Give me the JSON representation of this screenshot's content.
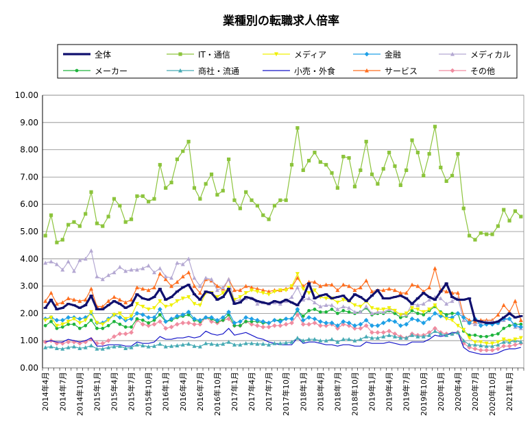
{
  "chart_data": {
    "type": "line",
    "title": "業種別の転職求人倍率",
    "xlabel": "",
    "ylabel": "",
    "ylim": [
      0,
      10
    ],
    "yticks": [
      "0.00",
      "1.00",
      "2.00",
      "3.00",
      "4.00",
      "5.00",
      "6.00",
      "7.00",
      "8.00",
      "9.00",
      "10.00"
    ],
    "grid": true,
    "legend_position": "top",
    "x_tick_labels": [
      "2014年4月",
      "2014年7月",
      "2014年10月",
      "2015年1月",
      "2015年4月",
      "2015年7月",
      "2015年10月",
      "2016年1月",
      "2016年4月",
      "2016年7月",
      "2016年10月",
      "2017年1月",
      "2017年4月",
      "2017年7月",
      "2017年10月",
      "2018年1月",
      "2018年4月",
      "2018年7月",
      "2018年10月",
      "2019年1月",
      "2019年4月",
      "2019年7月",
      "2019年10月",
      "2020年1月",
      "2020年4月",
      "2020年7月",
      "2020年10月",
      "2021年1月"
    ],
    "n_points": 84,
    "series": [
      {
        "name": "全体",
        "color": "#10106e",
        "marker": "dash",
        "width": 3.2,
        "values": [
          2.2,
          2.5,
          2.15,
          2.2,
          2.35,
          2.3,
          2.2,
          2.3,
          2.65,
          2.15,
          2.15,
          2.3,
          2.45,
          2.35,
          2.2,
          2.3,
          2.7,
          2.55,
          2.5,
          2.6,
          2.9,
          2.5,
          2.6,
          2.8,
          2.95,
          3.05,
          2.7,
          2.5,
          2.8,
          2.75,
          2.5,
          2.6,
          2.9,
          2.35,
          2.4,
          2.6,
          2.55,
          2.45,
          2.4,
          2.35,
          2.45,
          2.4,
          2.5,
          2.4,
          2.3,
          2.6,
          3.1,
          2.55,
          2.65,
          2.7,
          2.55,
          2.6,
          2.65,
          2.45,
          2.7,
          2.6,
          2.45,
          2.65,
          2.85,
          2.55,
          2.55,
          2.6,
          2.65,
          2.55,
          2.35,
          2.55,
          2.75,
          2.6,
          2.5,
          2.8,
          3.1,
          2.6,
          2.5,
          2.5,
          2.55,
          1.75,
          1.7,
          1.65,
          1.65,
          1.7,
          1.85,
          2.0,
          1.85,
          1.9
        ]
      },
      {
        "name": "IT・通信",
        "color": "#8cc43c",
        "marker": "square",
        "width": 1.2,
        "values": [
          4.85,
          5.6,
          4.6,
          4.7,
          5.25,
          5.35,
          5.2,
          5.65,
          6.45,
          5.3,
          5.2,
          5.55,
          6.2,
          5.95,
          5.35,
          5.45,
          6.3,
          6.3,
          6.1,
          6.2,
          7.45,
          6.6,
          6.8,
          7.65,
          7.95,
          8.3,
          6.6,
          6.2,
          6.75,
          7.1,
          6.35,
          6.5,
          7.65,
          6.15,
          5.85,
          6.45,
          6.15,
          5.95,
          5.6,
          5.45,
          5.95,
          6.15,
          6.15,
          7.45,
          8.8,
          7.25,
          7.6,
          7.9,
          7.55,
          7.45,
          7.15,
          6.6,
          7.75,
          7.7,
          6.65,
          7.25,
          8.3,
          7.1,
          6.75,
          7.3,
          7.9,
          7.4,
          6.7,
          7.25,
          8.35,
          7.9,
          7.05,
          7.85,
          8.85,
          7.35,
          6.85,
          7.05,
          7.85,
          5.85,
          4.85,
          4.7,
          4.95,
          4.9,
          4.9,
          5.2,
          5.8,
          5.4,
          5.75,
          5.55
        ]
      },
      {
        "name": "メディア",
        "color": "#f0f000",
        "marker": "triangle-down",
        "width": 1.2,
        "values": [
          1.75,
          1.85,
          1.55,
          1.6,
          1.7,
          1.8,
          1.65,
          1.75,
          2.05,
          1.65,
          1.6,
          1.75,
          1.95,
          2.0,
          1.8,
          1.9,
          2.35,
          2.25,
          2.15,
          2.2,
          2.45,
          2.25,
          2.3,
          2.45,
          2.55,
          2.6,
          2.35,
          2.3,
          2.75,
          2.75,
          2.6,
          2.75,
          2.95,
          2.5,
          2.6,
          2.75,
          2.85,
          2.8,
          2.75,
          2.7,
          2.8,
          2.85,
          2.85,
          3.0,
          3.45,
          2.9,
          2.75,
          2.85,
          2.6,
          2.55,
          2.55,
          2.4,
          2.5,
          2.45,
          2.3,
          2.25,
          2.45,
          2.2,
          2.15,
          2.15,
          2.2,
          2.1,
          1.95,
          2.0,
          2.2,
          2.15,
          2.05,
          2.15,
          2.3,
          2.0,
          1.8,
          1.75,
          1.55,
          1.4,
          1.1,
          0.95,
          0.95,
          0.9,
          0.9,
          0.95,
          1.05,
          1.0,
          1.05,
          1.1
        ]
      },
      {
        "name": "金融",
        "color": "#1ea0e6",
        "marker": "diamond",
        "width": 1.2,
        "values": [
          1.8,
          1.85,
          1.75,
          1.75,
          1.85,
          1.85,
          1.8,
          1.85,
          2.0,
          1.65,
          1.65,
          1.8,
          1.95,
          1.85,
          1.75,
          1.8,
          2.0,
          1.95,
          1.85,
          1.85,
          2.15,
          1.7,
          1.8,
          1.9,
          1.95,
          2.05,
          1.8,
          1.75,
          1.85,
          1.85,
          1.75,
          1.85,
          2.05,
          1.65,
          1.7,
          1.85,
          1.8,
          1.75,
          1.7,
          1.65,
          1.75,
          1.7,
          1.8,
          1.8,
          2.15,
          1.75,
          1.85,
          1.8,
          1.7,
          1.65,
          1.65,
          1.55,
          1.7,
          1.65,
          1.55,
          1.6,
          1.75,
          1.55,
          1.55,
          1.65,
          1.75,
          1.7,
          1.55,
          1.6,
          1.8,
          1.75,
          1.65,
          1.8,
          2.0,
          1.9,
          1.85,
          1.85,
          2.0,
          1.85,
          1.65,
          1.8,
          1.55,
          1.6,
          1.6,
          1.65,
          1.8,
          1.8,
          1.55,
          1.5
        ]
      },
      {
        "name": "メディカル",
        "color": "#b4a8d2",
        "marker": "triangle",
        "width": 1.2,
        "values": [
          3.85,
          3.9,
          3.8,
          3.6,
          3.9,
          3.55,
          3.95,
          4.0,
          4.3,
          3.35,
          3.25,
          3.4,
          3.5,
          3.7,
          3.55,
          3.6,
          3.6,
          3.65,
          3.75,
          3.5,
          3.65,
          3.35,
          3.3,
          3.85,
          3.8,
          4.0,
          3.3,
          3.0,
          3.3,
          3.25,
          2.85,
          2.95,
          3.25,
          2.45,
          2.5,
          2.55,
          2.55,
          2.35,
          2.4,
          2.35,
          2.4,
          2.35,
          2.45,
          2.6,
          2.95,
          2.5,
          2.55,
          2.4,
          2.25,
          2.3,
          2.3,
          2.15,
          2.25,
          2.2,
          2.05,
          2.05,
          2.25,
          2.0,
          2.05,
          2.05,
          2.15,
          2.1,
          1.95,
          1.95,
          2.35,
          2.3,
          2.35,
          2.5,
          2.6,
          2.55,
          2.35,
          2.45,
          2.55,
          1.75,
          1.65,
          1.6,
          1.65,
          1.7,
          1.7,
          1.65,
          1.75,
          1.8,
          1.5,
          1.45
        ]
      },
      {
        "name": "メーカー",
        "color": "#1eb43c",
        "marker": "circle",
        "width": 1.2,
        "values": [
          1.55,
          1.7,
          1.45,
          1.5,
          1.6,
          1.6,
          1.45,
          1.55,
          1.75,
          1.45,
          1.45,
          1.55,
          1.7,
          1.6,
          1.5,
          1.5,
          1.8,
          1.75,
          1.65,
          1.75,
          1.95,
          1.7,
          1.75,
          1.85,
          1.9,
          1.95,
          1.75,
          1.7,
          1.85,
          1.8,
          1.7,
          1.75,
          1.95,
          1.55,
          1.55,
          1.7,
          1.7,
          1.7,
          1.65,
          1.65,
          1.75,
          1.75,
          1.8,
          1.8,
          2.1,
          1.9,
          2.1,
          2.15,
          2.05,
          2.05,
          2.15,
          2.0,
          2.1,
          2.05,
          2.0,
          2.05,
          2.2,
          1.95,
          2.0,
          2.0,
          2.1,
          2.0,
          1.85,
          1.9,
          2.1,
          2.0,
          1.95,
          2.1,
          2.25,
          2.05,
          1.95,
          2.0,
          2.0,
          1.35,
          1.2,
          1.2,
          1.15,
          1.15,
          1.2,
          1.25,
          1.45,
          1.55,
          1.6,
          1.6
        ]
      },
      {
        "name": "商社・流通",
        "color": "#46aab4",
        "marker": "triangle",
        "width": 1.2,
        "values": [
          0.75,
          0.78,
          0.72,
          0.7,
          0.75,
          0.78,
          0.72,
          0.75,
          0.82,
          0.7,
          0.7,
          0.75,
          0.78,
          0.8,
          0.72,
          0.75,
          0.85,
          0.82,
          0.78,
          0.8,
          0.88,
          0.78,
          0.8,
          0.82,
          0.85,
          0.88,
          0.8,
          0.78,
          0.9,
          0.88,
          0.85,
          0.88,
          0.95,
          0.85,
          0.85,
          0.9,
          0.9,
          0.88,
          0.88,
          0.85,
          0.9,
          0.9,
          0.92,
          0.95,
          1.1,
          1.0,
          1.05,
          1.05,
          1.0,
          1.0,
          1.05,
          0.95,
          1.05,
          1.05,
          1.0,
          1.05,
          1.15,
          1.1,
          1.1,
          1.15,
          1.2,
          1.15,
          1.1,
          1.1,
          1.2,
          1.15,
          1.15,
          1.2,
          1.35,
          1.25,
          1.2,
          1.25,
          1.3,
          1.0,
          0.85,
          0.85,
          0.82,
          0.8,
          0.8,
          0.85,
          0.95,
          0.95,
          1.0,
          0.95
        ]
      },
      {
        "name": "小売・外食",
        "color": "#1414c8",
        "marker": "none",
        "width": 1.2,
        "values": [
          0.95,
          1.0,
          0.95,
          0.95,
          1.05,
          1.0,
          0.95,
          1.0,
          1.1,
          0.8,
          0.8,
          0.85,
          0.85,
          0.85,
          0.8,
          0.8,
          0.95,
          0.9,
          0.9,
          0.95,
          1.15,
          1.05,
          1.05,
          1.1,
          1.1,
          1.15,
          1.1,
          1.15,
          1.35,
          1.25,
          1.2,
          1.25,
          1.45,
          1.2,
          1.25,
          1.3,
          1.2,
          1.1,
          1.05,
          0.95,
          0.9,
          0.85,
          0.85,
          0.85,
          1.1,
          0.9,
          0.95,
          0.95,
          0.9,
          0.85,
          0.85,
          0.8,
          0.85,
          0.85,
          0.8,
          0.8,
          0.95,
          0.9,
          0.9,
          0.9,
          0.95,
          0.9,
          0.85,
          0.85,
          0.95,
          0.95,
          0.95,
          1.05,
          1.2,
          1.15,
          1.2,
          1.3,
          1.3,
          0.75,
          0.6,
          0.55,
          0.5,
          0.5,
          0.5,
          0.55,
          0.65,
          0.7,
          0.7,
          0.75
        ]
      },
      {
        "name": "サービス",
        "color": "#ff6e1e",
        "marker": "triangle",
        "width": 1.2,
        "values": [
          2.45,
          2.75,
          2.35,
          2.4,
          2.55,
          2.5,
          2.45,
          2.5,
          2.9,
          2.25,
          2.25,
          2.45,
          2.6,
          2.5,
          2.4,
          2.5,
          2.95,
          2.9,
          2.85,
          2.95,
          3.45,
          3.25,
          3.0,
          3.15,
          3.35,
          3.5,
          3.0,
          2.75,
          3.25,
          3.2,
          3.0,
          2.9,
          3.25,
          2.85,
          2.85,
          3.0,
          2.95,
          2.9,
          2.85,
          2.8,
          2.85,
          2.85,
          2.9,
          2.95,
          3.3,
          3.0,
          3.15,
          3.15,
          3.0,
          3.05,
          3.05,
          2.85,
          3.05,
          3.0,
          2.85,
          2.95,
          3.2,
          2.8,
          2.85,
          2.85,
          2.9,
          2.85,
          2.75,
          2.75,
          3.05,
          3.0,
          2.8,
          2.95,
          3.65,
          2.85,
          2.8,
          2.75,
          2.75,
          1.9,
          1.75,
          1.7,
          1.75,
          1.75,
          1.75,
          1.95,
          2.3,
          2.05,
          2.45,
          1.75
        ]
      },
      {
        "name": "その他",
        "color": "#f08ca0",
        "marker": "diamond",
        "width": 1.2,
        "values": [
          0.95,
          1.0,
          0.9,
          0.9,
          0.95,
          0.95,
          0.9,
          0.95,
          1.05,
          0.9,
          0.9,
          1.0,
          1.15,
          1.25,
          1.25,
          1.3,
          1.75,
          1.6,
          1.55,
          1.6,
          1.7,
          1.45,
          1.5,
          1.6,
          1.65,
          1.65,
          1.6,
          1.6,
          1.85,
          1.7,
          1.65,
          1.75,
          1.8,
          1.55,
          1.55,
          1.7,
          1.6,
          1.55,
          1.5,
          1.5,
          1.55,
          1.55,
          1.6,
          1.65,
          1.95,
          1.6,
          1.6,
          1.65,
          1.55,
          1.55,
          1.6,
          1.45,
          1.6,
          1.55,
          1.45,
          1.45,
          1.55,
          1.3,
          1.3,
          1.3,
          1.35,
          1.25,
          1.15,
          1.1,
          1.25,
          1.2,
          1.2,
          1.3,
          1.45,
          1.3,
          1.25,
          1.25,
          1.3,
          0.9,
          0.75,
          0.7,
          0.65,
          0.65,
          0.65,
          0.7,
          0.8,
          0.8,
          0.85,
          0.9
        ]
      }
    ]
  }
}
